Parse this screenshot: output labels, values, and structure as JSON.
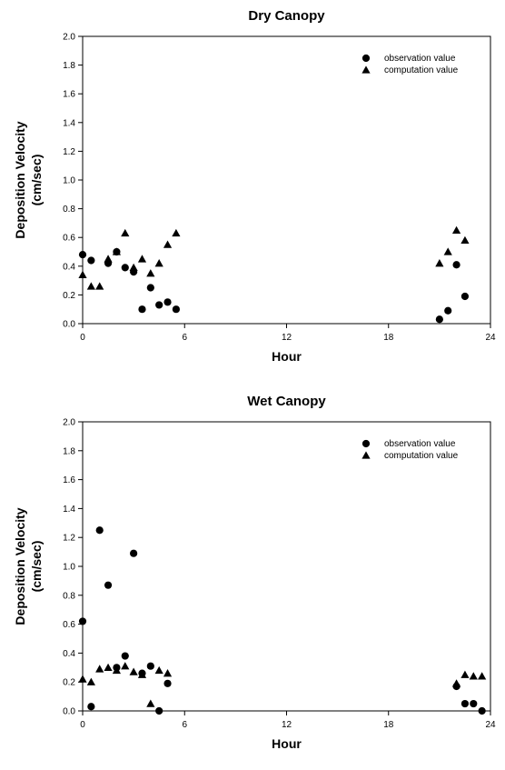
{
  "chart_data": [
    {
      "type": "scatter",
      "title": "Dry Canopy",
      "xlabel": "Hour",
      "ylabel_line1": "Deposition Velocity",
      "ylabel_line2": "(cm/sec)",
      "xlim": [
        0,
        24
      ],
      "ylim": [
        0,
        2.0
      ],
      "xticks": [
        0,
        6,
        12,
        18,
        24
      ],
      "yticks": [
        0.0,
        0.2,
        0.4,
        0.6,
        0.8,
        1.0,
        1.2,
        1.4,
        1.6,
        1.8,
        2.0
      ],
      "grid": false,
      "legend_position": "top-right",
      "series": [
        {
          "name": "observation value",
          "marker": "circle",
          "color": "#000000",
          "points": [
            [
              0,
              0.48
            ],
            [
              0.5,
              0.44
            ],
            [
              1.5,
              0.42
            ],
            [
              2,
              0.5
            ],
            [
              2.5,
              0.39
            ],
            [
              3,
              0.36
            ],
            [
              3.5,
              0.1
            ],
            [
              4,
              0.25
            ],
            [
              4.5,
              0.13
            ],
            [
              5,
              0.15
            ],
            [
              5.5,
              0.1
            ],
            [
              21,
              0.03
            ],
            [
              21.5,
              0.09
            ],
            [
              22,
              0.41
            ],
            [
              22.5,
              0.19
            ]
          ]
        },
        {
          "name": "computation value",
          "marker": "triangle",
          "color": "#000000",
          "points": [
            [
              0,
              0.34
            ],
            [
              0.5,
              0.26
            ],
            [
              1,
              0.26
            ],
            [
              1.5,
              0.45
            ],
            [
              2,
              0.5
            ],
            [
              2.5,
              0.63
            ],
            [
              3,
              0.39
            ],
            [
              3.5,
              0.45
            ],
            [
              4,
              0.35
            ],
            [
              4.5,
              0.42
            ],
            [
              5,
              0.55
            ],
            [
              5.5,
              0.63
            ],
            [
              21,
              0.42
            ],
            [
              21.5,
              0.5
            ],
            [
              22,
              0.65
            ],
            [
              22.5,
              0.58
            ]
          ]
        }
      ]
    },
    {
      "type": "scatter",
      "title": "Wet Canopy",
      "xlabel": "Hour",
      "ylabel_line1": "Deposition Velocity",
      "ylabel_line2": "(cm/sec)",
      "xlim": [
        0,
        24
      ],
      "ylim": [
        0,
        2.0
      ],
      "xticks": [
        0,
        6,
        12,
        18,
        24
      ],
      "yticks": [
        0.0,
        0.2,
        0.4,
        0.6,
        0.8,
        1.0,
        1.2,
        1.4,
        1.6,
        1.8,
        2.0
      ],
      "grid": false,
      "legend_position": "top-right",
      "series": [
        {
          "name": "observation value",
          "marker": "circle",
          "color": "#000000",
          "points": [
            [
              0,
              0.62
            ],
            [
              0.5,
              0.03
            ],
            [
              1,
              1.25
            ],
            [
              1.5,
              0.87
            ],
            [
              2,
              0.3
            ],
            [
              2.5,
              0.38
            ],
            [
              3,
              1.09
            ],
            [
              3.5,
              0.26
            ],
            [
              4,
              0.31
            ],
            [
              4.5,
              0.0
            ],
            [
              5,
              0.19
            ],
            [
              22,
              0.17
            ],
            [
              22.5,
              0.05
            ],
            [
              23,
              0.05
            ],
            [
              23.5,
              0.0
            ]
          ]
        },
        {
          "name": "computation value",
          "marker": "triangle",
          "color": "#000000",
          "points": [
            [
              0,
              0.22
            ],
            [
              0.5,
              0.2
            ],
            [
              1,
              0.29
            ],
            [
              1.5,
              0.3
            ],
            [
              2,
              0.28
            ],
            [
              2.5,
              0.31
            ],
            [
              3,
              0.27
            ],
            [
              3.5,
              0.25
            ],
            [
              4,
              0.05
            ],
            [
              4.5,
              0.28
            ],
            [
              5,
              0.26
            ],
            [
              22,
              0.19
            ],
            [
              22.5,
              0.25
            ],
            [
              23,
              0.24
            ],
            [
              23.5,
              0.24
            ]
          ]
        }
      ]
    }
  ]
}
